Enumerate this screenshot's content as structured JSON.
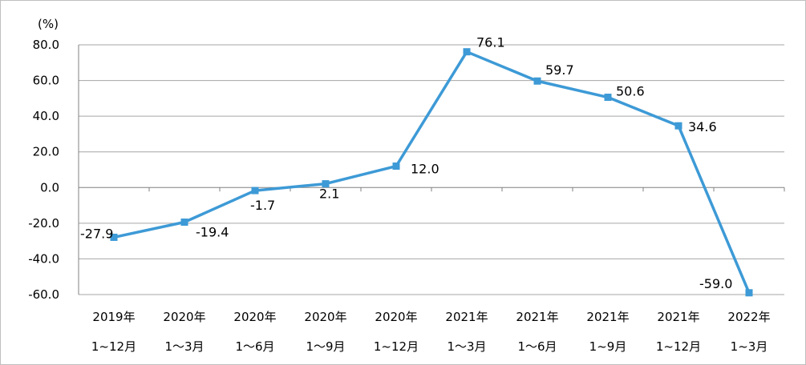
{
  "chart_data": {
    "type": "line",
    "ylabel": "(%)",
    "ylim": [
      -60,
      80
    ],
    "ytick_step": 20,
    "yticks": [
      "80.0",
      "60.0",
      "40.0",
      "20.0",
      "0.0",
      "-20.0",
      "-40.0",
      "-60.0"
    ],
    "grid": true,
    "categories": [
      [
        "2019年",
        "1~12月"
      ],
      [
        "2020年",
        "1～3月"
      ],
      [
        "2020年",
        "1～6月"
      ],
      [
        "2020年",
        "1～9月"
      ],
      [
        "2020年",
        "1~12月"
      ],
      [
        "2021年",
        "1～3月"
      ],
      [
        "2021年",
        "1～6月"
      ],
      [
        "2021年",
        "1~9月"
      ],
      [
        "2021年",
        "1~12月"
      ],
      [
        "2022年",
        "1~3月"
      ]
    ],
    "series": [
      {
        "values": [
          -27.9,
          -19.4,
          -1.7,
          2.1,
          12.0,
          76.1,
          59.7,
          50.6,
          34.6,
          -59.0
        ],
        "labels": [
          "-27.9",
          "-19.4",
          "-1.7",
          "2.1",
          "12.0",
          "76.1",
          "59.7",
          "50.6",
          "34.6",
          "-59.0"
        ],
        "color": "#3d9ad6",
        "marker": "square"
      }
    ],
    "gridline_color": "#a6a6a6",
    "axis_color": "#808080"
  }
}
